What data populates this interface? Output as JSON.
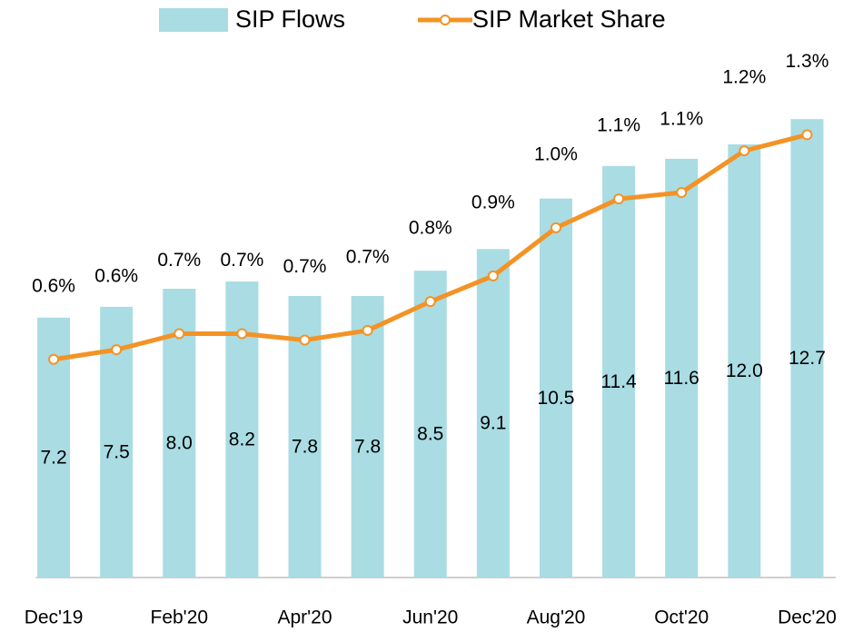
{
  "chart_data": {
    "type": "combo",
    "categories": [
      "Dec'19",
      null,
      "Feb'20",
      null,
      "Apr'20",
      null,
      "Jun'20",
      null,
      "Aug'20",
      null,
      "Oct'20",
      null,
      "Dec'20"
    ],
    "series": [
      {
        "name": "SIP Flows",
        "type": "bar",
        "color": "#a9dce3",
        "values": [
          7.2,
          7.5,
          8.0,
          8.2,
          7.8,
          7.8,
          8.5,
          9.1,
          10.5,
          11.4,
          11.6,
          12.0,
          12.7
        ],
        "value_labels": [
          "7.2",
          "7.5",
          "8.0",
          "8.2",
          "7.8",
          "7.8",
          "8.5",
          "9.1",
          "10.5",
          "11.4",
          "11.6",
          "12.0",
          "12.7"
        ]
      },
      {
        "name": "SIP Market Share",
        "type": "line",
        "axis": "y2",
        "color": "#f39325",
        "values": [
          0.6,
          0.63,
          0.68,
          0.68,
          0.66,
          0.69,
          0.78,
          0.86,
          1.01,
          1.1,
          1.12,
          1.25,
          1.3
        ],
        "value_labels": [
          "0.6%",
          "0.6%",
          "0.7%",
          "0.7%",
          "0.7%",
          "0.7%",
          "0.8%",
          "0.9%",
          "1.0%",
          "1.1%",
          "1.1%",
          "1.2%",
          "1.3%"
        ]
      }
    ],
    "ylim": [
      0,
      16
    ],
    "y2lim": [
      -0.08,
      1.72
    ],
    "grid": false,
    "legend": "top"
  }
}
